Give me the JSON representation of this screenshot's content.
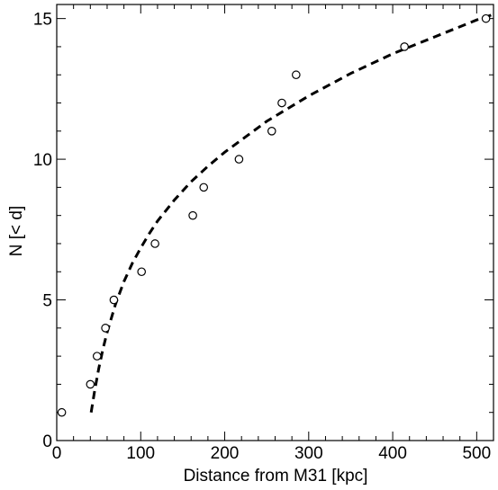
{
  "chart_data": {
    "type": "scatter",
    "title": "",
    "xlabel": "Distance from M31 [kpc]",
    "ylabel": "N [< d]",
    "xlim": [
      0,
      520
    ],
    "ylim": [
      0,
      15.5
    ],
    "grid": false,
    "legend": "none",
    "x_ticks": [
      0,
      100,
      200,
      300,
      400,
      500
    ],
    "y_ticks": [
      0,
      5,
      10,
      15
    ],
    "x_tick_labels": [
      "0",
      "100",
      "200",
      "300",
      "400",
      "500"
    ],
    "y_tick_labels": [
      "0",
      "5",
      "10",
      "15"
    ],
    "series": [
      {
        "kind": "scatter",
        "marker": "open-circle",
        "color": "#000000",
        "x": [
          6,
          40,
          48,
          58,
          68,
          101,
          117,
          162,
          175,
          217,
          256,
          268,
          285,
          414,
          511
        ],
        "y": [
          1,
          2,
          3,
          4,
          5,
          6,
          7,
          8,
          9,
          10,
          11,
          12,
          13,
          14,
          15
        ]
      },
      {
        "kind": "line",
        "style": "dashed",
        "color": "#000000",
        "x": [
          41,
          45,
          50,
          55,
          60,
          70,
          80,
          90,
          100,
          110,
          120,
          140,
          160,
          180,
          200,
          225,
          250,
          275,
          300,
          325,
          350,
          375,
          400,
          425,
          450,
          475,
          500,
          520
        ],
        "y": [
          1.0,
          1.75,
          2.55,
          3.25,
          3.85,
          4.85,
          5.65,
          6.3,
          6.85,
          7.35,
          7.8,
          8.55,
          9.2,
          9.75,
          10.25,
          10.8,
          11.35,
          11.8,
          12.25,
          12.65,
          13.05,
          13.4,
          13.75,
          14.05,
          14.35,
          14.65,
          14.95,
          15.15
        ]
      }
    ]
  }
}
